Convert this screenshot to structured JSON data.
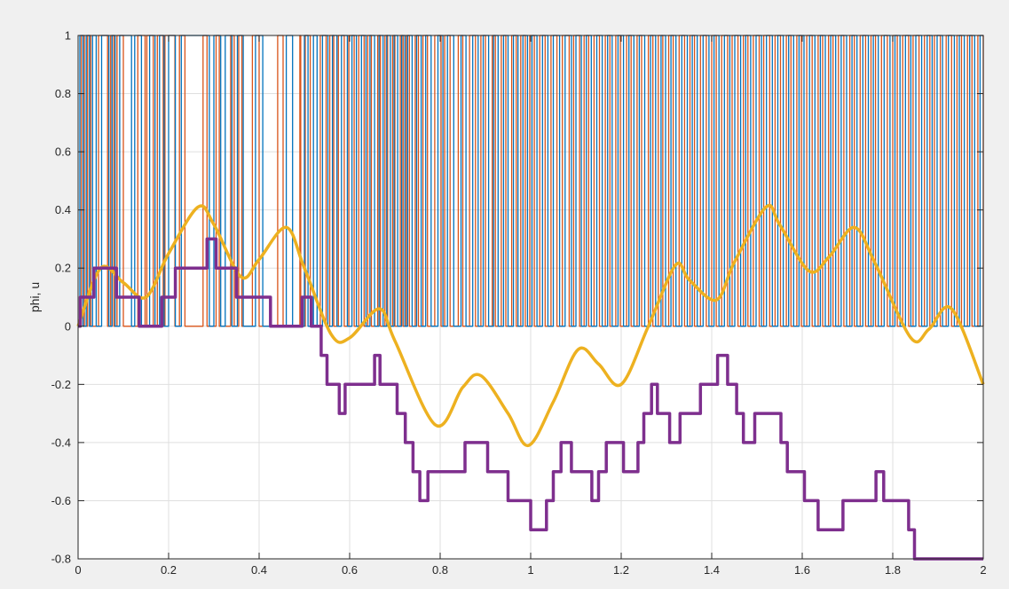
{
  "chart_data": {
    "type": "line",
    "title": "",
    "xlabel": "",
    "ylabel": "phi, u",
    "xlim": [
      0,
      2
    ],
    "ylim": [
      -0.8,
      1
    ],
    "grid": true,
    "xticks": [
      0,
      0.2,
      0.4,
      0.6,
      0.8,
      1,
      1.2,
      1.4,
      1.6,
      1.8,
      2
    ],
    "xtick_labels": [
      "0",
      "0.2",
      "0.4",
      "0.6",
      "0.8",
      "1",
      "1.2",
      "1.4",
      "1.6",
      "1.8",
      "2"
    ],
    "yticks": [
      -0.8,
      -0.6,
      -0.4,
      -0.2,
      0,
      0.2,
      0.4,
      0.6,
      0.8,
      1
    ],
    "ytick_labels": [
      "-0.8",
      "-0.6",
      "-0.4",
      "-0.2",
      "0",
      "0.2",
      "0.4",
      "0.6",
      "0.8",
      "1"
    ],
    "series": [
      {
        "color": "#d95319",
        "style": "binary-switching-0-1",
        "x": [
          0,
          0.007,
          0.014,
          0.021,
          0.028,
          0.045,
          0.065,
          0.072,
          0.079,
          0.086,
          0.1,
          0.132,
          0.148,
          0.152,
          0.166,
          0.175,
          0.188,
          0.192,
          0.214,
          0.224,
          0.236,
          0.276,
          0.285,
          0.305,
          0.312,
          0.337,
          0.345,
          0.355,
          0.362,
          0.385,
          0.4,
          0.441,
          0.453,
          0.49,
          0.492,
          0.502,
          0.513,
          0.535,
          0.548,
          0.556,
          0.565,
          0.575,
          0.588,
          0.598,
          0.61,
          0.62,
          0.632,
          0.64,
          0.648,
          0.662,
          0.668,
          0.678,
          0.684,
          0.695,
          0.7,
          0.712,
          0.718,
          0.725,
          0.732,
          0.745,
          0.752,
          0.762,
          0.772,
          0.788,
          0.802,
          0.81,
          0.822,
          0.84,
          0.85,
          0.865,
          0.878,
          0.89,
          0.9,
          0.915,
          0.922,
          0.935,
          0.945,
          0.958,
          0.968,
          0.978,
          0.988,
          0.998,
          1.008,
          1.02,
          1.032,
          1.045,
          1.058,
          1.07,
          1.085,
          1.095,
          1.108,
          1.118,
          1.128,
          1.14,
          1.152,
          1.165,
          1.175,
          1.188,
          1.198,
          1.212,
          1.222,
          1.235,
          1.245,
          1.26,
          1.27,
          1.282,
          1.292,
          1.305,
          1.315,
          1.328,
          1.34,
          1.352,
          1.362,
          1.375,
          1.388,
          1.4,
          1.41,
          1.422,
          1.435,
          1.445,
          1.458,
          1.47,
          1.48,
          1.492,
          1.505,
          1.515,
          1.528,
          1.54,
          1.552,
          1.565,
          1.575,
          1.588,
          1.598,
          1.61,
          1.622,
          1.635,
          1.645,
          1.658,
          1.668,
          1.68,
          1.692,
          1.705,
          1.715,
          1.728,
          1.74,
          1.752,
          1.762,
          1.775,
          1.788,
          1.8,
          1.81,
          1.822,
          1.835,
          1.845,
          1.858,
          1.87,
          1.882,
          1.892,
          1.905,
          1.918,
          1.93,
          1.942,
          1.952,
          1.965,
          1.975,
          1.988,
          2.0
        ],
        "y": [
          0,
          1,
          0,
          1,
          0,
          1,
          0,
          1,
          0,
          1,
          0,
          1,
          0,
          1,
          0,
          1,
          0,
          1,
          0,
          1,
          0,
          1,
          0,
          1,
          0,
          1,
          0,
          1,
          0,
          1,
          0,
          1,
          0,
          1,
          0,
          1,
          0,
          1,
          0,
          1,
          0,
          1,
          0,
          1,
          0,
          1,
          0,
          1,
          0,
          1,
          0,
          1,
          0,
          1,
          0,
          1,
          0,
          1,
          0,
          1,
          0,
          1,
          0,
          1,
          0,
          1,
          0,
          1,
          0,
          1,
          0,
          1,
          0,
          1,
          0,
          1,
          0,
          1,
          0,
          1,
          0,
          1,
          0,
          1,
          0,
          1,
          0,
          1,
          0,
          1,
          0,
          1,
          0,
          1,
          0,
          1,
          0,
          1,
          0,
          1,
          0,
          1,
          0,
          1,
          0,
          1,
          0,
          1,
          0,
          1,
          0,
          1,
          0,
          1,
          0,
          1,
          0,
          1,
          0,
          1,
          0,
          1,
          0,
          1,
          0,
          1,
          0,
          1,
          0,
          1,
          0,
          1,
          0,
          1,
          0,
          1,
          0,
          1,
          0,
          1,
          0,
          1,
          0,
          1,
          0,
          1,
          0,
          1,
          0,
          1,
          0,
          1,
          0,
          1,
          0,
          1,
          0,
          1,
          0,
          1,
          0,
          1,
          0,
          1,
          0,
          1,
          0
        ]
      },
      {
        "color": "#0072bd",
        "style": "binary-switching-0-1",
        "x": [
          0,
          0.004,
          0.011,
          0.018,
          0.025,
          0.032,
          0.04,
          0.052,
          0.068,
          0.075,
          0.082,
          0.092,
          0.118,
          0.125,
          0.14,
          0.158,
          0.17,
          0.18,
          0.19,
          0.2,
          0.215,
          0.228,
          0.29,
          0.3,
          0.315,
          0.325,
          0.34,
          0.352,
          0.365,
          0.392,
          0.408,
          0.46,
          0.474,
          0.5,
          0.508,
          0.52,
          0.528,
          0.54,
          0.552,
          0.562,
          0.572,
          0.582,
          0.595,
          0.605,
          0.615,
          0.626,
          0.636,
          0.645,
          0.655,
          0.665,
          0.674,
          0.682,
          0.69,
          0.698,
          0.706,
          0.715,
          0.722,
          0.728,
          0.738,
          0.748,
          0.758,
          0.768,
          0.78,
          0.795,
          0.806,
          0.816,
          0.83,
          0.846,
          0.857,
          0.872,
          0.884,
          0.895,
          0.907,
          0.918,
          0.928,
          0.94,
          0.95,
          0.962,
          0.972,
          0.983,
          0.993,
          1.003,
          1.014,
          1.026,
          1.038,
          1.05,
          1.064,
          1.076,
          1.09,
          1.1,
          1.112,
          1.123,
          1.134,
          1.146,
          1.158,
          1.17,
          1.18,
          1.193,
          1.205,
          1.217,
          1.228,
          1.24,
          1.252,
          1.265,
          1.276,
          1.288,
          1.298,
          1.31,
          1.321,
          1.334,
          1.346,
          1.357,
          1.368,
          1.381,
          1.394,
          1.405,
          1.416,
          1.428,
          1.44,
          1.451,
          1.464,
          1.475,
          1.486,
          1.498,
          1.51,
          1.521,
          1.534,
          1.546,
          1.558,
          1.57,
          1.581,
          1.593,
          1.604,
          1.616,
          1.628,
          1.64,
          1.651,
          1.663,
          1.674,
          1.686,
          1.698,
          1.71,
          1.721,
          1.734,
          1.746,
          1.757,
          1.768,
          1.781,
          1.794,
          1.805,
          1.816,
          1.828,
          1.84,
          1.851,
          1.864,
          1.876,
          1.887,
          1.898,
          1.91,
          1.923,
          1.936,
          1.947,
          1.958,
          1.97,
          1.981,
          1.993,
          2.0
        ],
        "y": [
          0,
          1,
          0,
          1,
          0,
          1,
          0,
          1,
          0,
          1,
          0,
          1,
          0,
          1,
          0,
          1,
          0,
          1,
          0,
          1,
          0,
          1,
          0,
          1,
          0,
          1,
          0,
          1,
          0,
          1,
          0,
          1,
          0,
          1,
          0,
          1,
          0,
          1,
          0,
          1,
          0,
          1,
          0,
          1,
          0,
          1,
          0,
          1,
          0,
          1,
          0,
          1,
          0,
          1,
          0,
          1,
          0,
          1,
          0,
          1,
          0,
          1,
          0,
          1,
          0,
          1,
          0,
          1,
          0,
          1,
          0,
          1,
          0,
          1,
          0,
          1,
          0,
          1,
          0,
          1,
          0,
          1,
          0,
          1,
          0,
          1,
          0,
          1,
          0,
          1,
          0,
          1,
          0,
          1,
          0,
          1,
          0,
          1,
          0,
          1,
          0,
          1,
          0,
          1,
          0,
          1,
          0,
          1,
          0,
          1,
          0,
          1,
          0,
          1,
          0,
          1,
          0,
          1,
          0,
          1,
          0,
          1,
          0,
          1,
          0,
          1,
          0,
          1,
          0,
          1,
          0,
          1,
          0,
          1,
          0,
          1,
          0,
          1,
          0,
          1,
          0,
          1,
          0,
          1,
          0,
          1,
          0,
          1,
          0,
          1,
          0,
          1,
          0,
          1,
          0,
          1,
          0,
          1,
          0,
          1,
          0,
          1,
          0,
          1,
          0,
          1,
          1
        ]
      },
      {
        "color": "#edb120",
        "style": "smooth",
        "x": [
          0,
          0.05,
          0.1,
          0.15,
          0.2,
          0.265,
          0.3,
          0.36,
          0.4,
          0.46,
          0.5,
          0.56,
          0.6,
          0.665,
          0.7,
          0.79,
          0.85,
          0.89,
          0.95,
          0.995,
          1.05,
          1.105,
          1.15,
          1.2,
          1.26,
          1.32,
          1.35,
          1.41,
          1.45,
          1.52,
          1.55,
          1.615,
          1.66,
          1.715,
          1.76,
          1.84,
          1.88,
          1.93,
          2.0
        ],
        "y": [
          0,
          0.2,
          0.15,
          0.1,
          0.25,
          0.41,
          0.35,
          0.17,
          0.23,
          0.34,
          0.2,
          -0.03,
          -0.04,
          0.06,
          -0.05,
          -0.34,
          -0.21,
          -0.17,
          -0.3,
          -0.41,
          -0.26,
          -0.08,
          -0.13,
          -0.2,
          0.0,
          0.21,
          0.16,
          0.09,
          0.22,
          0.41,
          0.35,
          0.19,
          0.24,
          0.34,
          0.22,
          -0.04,
          -0.01,
          0.06,
          -0.2
        ]
      },
      {
        "color": "#7e2f8e",
        "style": "staircase",
        "x": [
          0,
          0.005,
          0.025,
          0.035,
          0.08,
          0.085,
          0.13,
          0.135,
          0.18,
          0.185,
          0.21,
          0.215,
          0.28,
          0.285,
          0.3,
          0.305,
          0.345,
          0.35,
          0.42,
          0.425,
          0.49,
          0.495,
          0.51,
          0.515,
          0.532,
          0.537,
          0.545,
          0.55,
          0.572,
          0.577,
          0.585,
          0.59,
          0.65,
          0.655,
          0.662,
          0.667,
          0.7,
          0.705,
          0.718,
          0.723,
          0.735,
          0.74,
          0.75,
          0.755,
          0.768,
          0.773,
          0.85,
          0.855,
          0.9,
          0.905,
          0.945,
          0.95,
          0.995,
          1.0,
          1.03,
          1.035,
          1.045,
          1.05,
          1.062,
          1.067,
          1.085,
          1.09,
          1.13,
          1.135,
          1.145,
          1.15,
          1.162,
          1.167,
          1.2,
          1.205,
          1.232,
          1.237,
          1.245,
          1.25,
          1.262,
          1.267,
          1.275,
          1.28,
          1.302,
          1.307,
          1.325,
          1.33,
          1.37,
          1.375,
          1.408,
          1.413,
          1.43,
          1.435,
          1.45,
          1.455,
          1.465,
          1.47,
          1.49,
          1.495,
          1.548,
          1.553,
          1.562,
          1.567,
          1.6,
          1.605,
          1.63,
          1.635,
          1.685,
          1.69,
          1.758,
          1.763,
          1.775,
          1.78,
          1.83,
          1.835,
          1.843,
          1.848,
          1.9,
          1.905,
          1.93,
          1.935,
          1.988,
          1.993,
          1.995,
          2.0
        ],
        "y": [
          0,
          0.1,
          0.1,
          0.2,
          0.2,
          0.1,
          0.1,
          0.0,
          0.0,
          0.1,
          0.1,
          0.2,
          0.2,
          0.3,
          0.3,
          0.2,
          0.2,
          0.1,
          0.1,
          0.0,
          0.0,
          0.1,
          0.1,
          0.0,
          0.0,
          -0.1,
          -0.1,
          -0.2,
          -0.2,
          -0.3,
          -0.3,
          -0.2,
          -0.2,
          -0.1,
          -0.1,
          -0.2,
          -0.2,
          -0.3,
          -0.3,
          -0.4,
          -0.4,
          -0.5,
          -0.5,
          -0.6,
          -0.6,
          -0.5,
          -0.5,
          -0.4,
          -0.4,
          -0.5,
          -0.5,
          -0.6,
          -0.6,
          -0.7,
          -0.7,
          -0.6,
          -0.6,
          -0.5,
          -0.5,
          -0.4,
          -0.4,
          -0.5,
          -0.5,
          -0.6,
          -0.6,
          -0.5,
          -0.5,
          -0.4,
          -0.4,
          -0.5,
          -0.5,
          -0.4,
          -0.4,
          -0.3,
          -0.3,
          -0.2,
          -0.2,
          -0.3,
          -0.3,
          -0.4,
          -0.4,
          -0.3,
          -0.3,
          -0.2,
          -0.2,
          -0.1,
          -0.1,
          -0.2,
          -0.2,
          -0.3,
          -0.3,
          -0.4,
          -0.4,
          -0.3,
          -0.3,
          -0.4,
          -0.4,
          -0.5,
          -0.5,
          -0.6,
          -0.6,
          -0.7,
          -0.7,
          -0.6,
          -0.6,
          -0.5,
          -0.5,
          -0.6,
          -0.6,
          -0.7,
          -0.7,
          -0.8,
          -0.8,
          -0.8,
          -0.8,
          -0.8,
          -0.8,
          -0.8,
          -0.8,
          -0.8
        ]
      }
    ]
  }
}
